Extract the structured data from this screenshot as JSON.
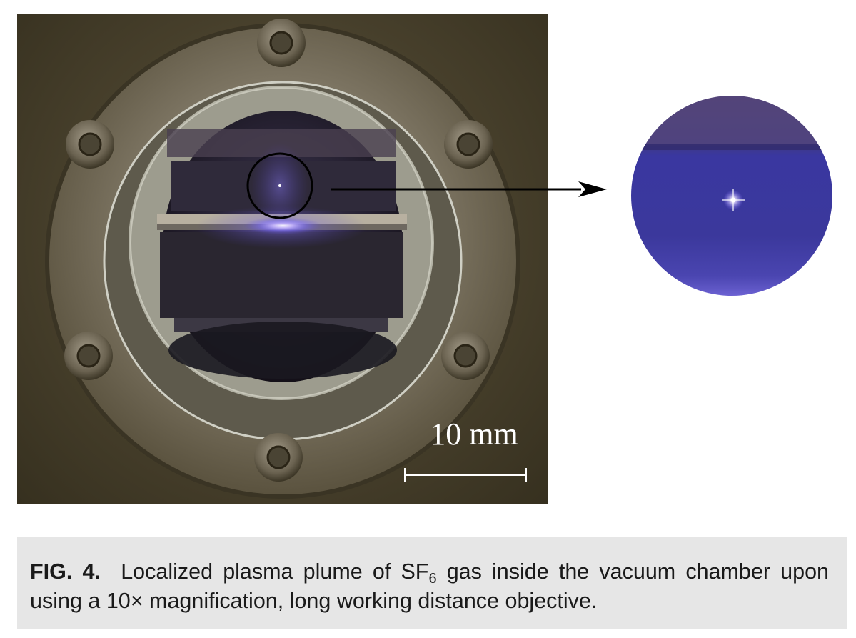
{
  "figure": {
    "scale_bar_label": "10 mm",
    "caption": {
      "label": "FIG. 4.",
      "text_before_sub": "Localized plasma plume of SF",
      "subscript": "6",
      "text_after_sub": " gas inside the vacuum chamber upon using a 10× magnification, long working distance objective."
    }
  },
  "colors": {
    "caption_background": "#e6e6e6",
    "plasma_purple": "#7b6cff",
    "arrow": "#000000"
  }
}
